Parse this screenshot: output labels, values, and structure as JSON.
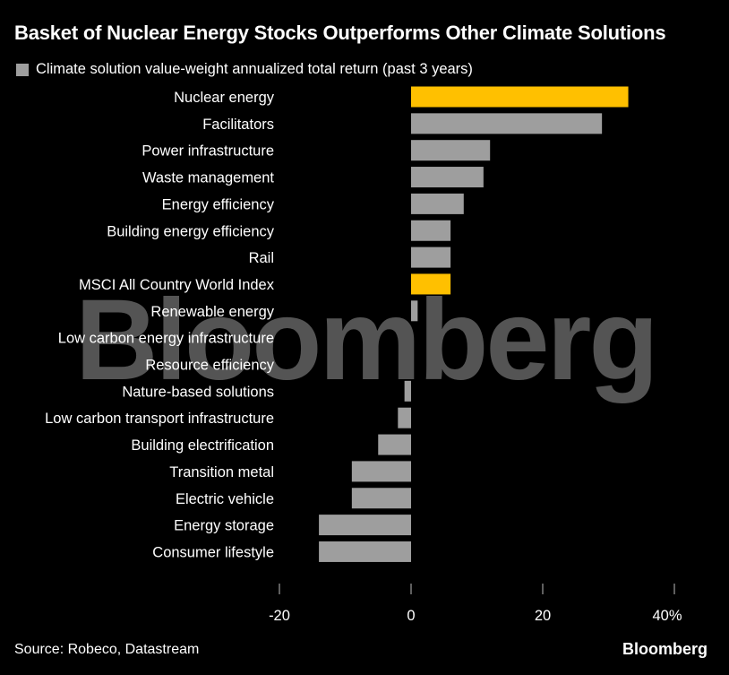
{
  "header": {
    "title": "Basket of Nuclear Energy Stocks Outperforms Other Climate Solutions"
  },
  "legend": {
    "label": "Climate solution value-weight annualized total return (past 3 years)",
    "color": "#9e9e9e"
  },
  "colors": {
    "highlight": "#ffc000",
    "default": "#9e9e9e",
    "background": "#000000"
  },
  "chart_data": {
    "type": "bar",
    "orientation": "horizontal",
    "categories": [
      "Nuclear energy",
      "Facilitators",
      "Power infrastructure",
      "Waste management",
      "Energy efficiency",
      "Building energy efficiency",
      "Rail",
      "MSCI All Country World Index",
      "Renewable energy",
      "Low carbon energy infrastructure",
      "Resource efficiency",
      "Nature-based solutions",
      "Low carbon transport infrastructure",
      "Building electrification",
      "Transition metal",
      "Electric vehicle",
      "Energy storage",
      "Consumer lifestyle"
    ],
    "values": [
      33,
      29,
      12,
      11,
      8,
      6,
      6,
      6,
      1,
      0,
      0,
      -1,
      -2,
      -5,
      -9,
      -9,
      -14,
      -14
    ],
    "highlighted": [
      true,
      false,
      false,
      false,
      false,
      false,
      false,
      true,
      false,
      false,
      false,
      false,
      false,
      false,
      false,
      false,
      false,
      false
    ],
    "xlim": [
      -20,
      40
    ],
    "xticks": [
      -20,
      0,
      20,
      40
    ],
    "xtick_labels": [
      "-20",
      "0",
      "20",
      "40%"
    ],
    "unit": "%",
    "grid": false
  },
  "watermark": "Bloomberg",
  "footer": {
    "source": "Source: Robeco, Datastream",
    "brand": "Bloomberg"
  }
}
